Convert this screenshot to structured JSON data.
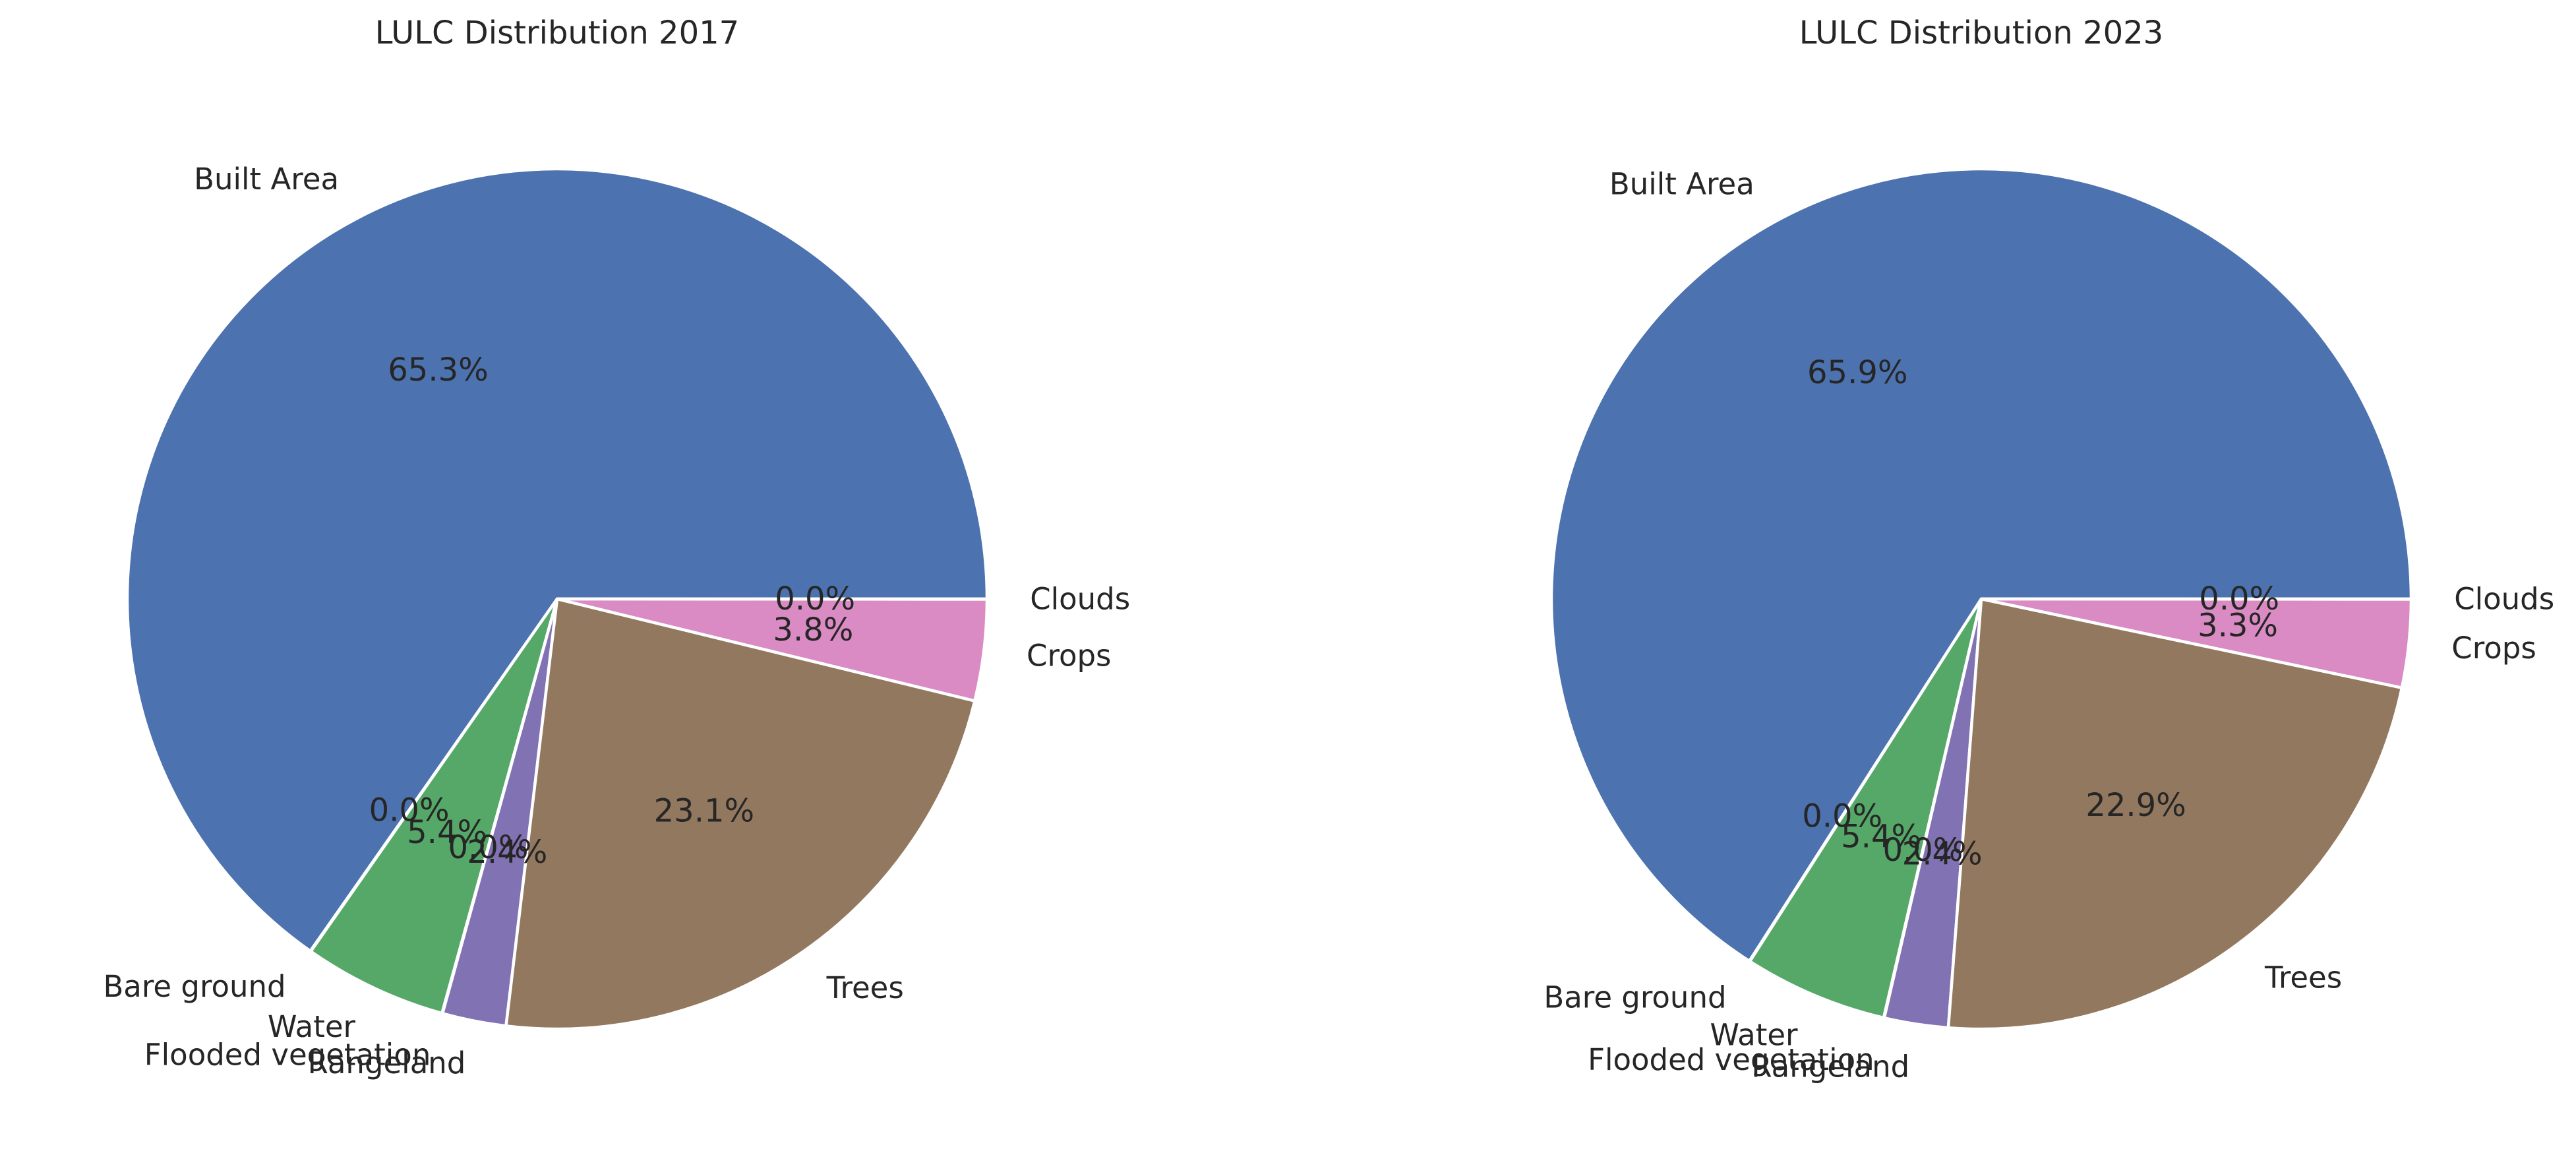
{
  "chart_data": [
    {
      "type": "pie",
      "title": "LULC Distribution 2017",
      "slices": [
        {
          "label": "Built Area",
          "value": 65.3,
          "pct_label": "65.3%",
          "color": "#4c72b0"
        },
        {
          "label": "Bare ground",
          "value": 0.02,
          "pct_label": "0.0%",
          "color": "#dd8452"
        },
        {
          "label": "Water",
          "value": 5.4,
          "pct_label": "5.4%",
          "color": "#55a868"
        },
        {
          "label": "Flooded vegetation",
          "value": 0.02,
          "pct_label": "0.0%",
          "color": "#c44e52"
        },
        {
          "label": "Rangeland",
          "value": 2.4,
          "pct_label": "2.4%",
          "color": "#8172b3"
        },
        {
          "label": "Trees",
          "value": 23.1,
          "pct_label": "23.1%",
          "color": "#937860"
        },
        {
          "label": "Crops",
          "value": 3.8,
          "pct_label": "3.8%",
          "color": "#da8bc3"
        },
        {
          "label": "Clouds",
          "value": 0.01,
          "pct_label": "0.0%",
          "color": "#8c8c8c"
        }
      ]
    },
    {
      "type": "pie",
      "title": "LULC Distribution 2023",
      "slices": [
        {
          "label": "Built Area",
          "value": 65.9,
          "pct_label": "65.9%",
          "color": "#4c72b0"
        },
        {
          "label": "Bare ground",
          "value": 0.02,
          "pct_label": "0.0%",
          "color": "#dd8452"
        },
        {
          "label": "Water",
          "value": 5.4,
          "pct_label": "5.4%",
          "color": "#55a868"
        },
        {
          "label": "Flooded vegetation",
          "value": 0.02,
          "pct_label": "0.0%",
          "color": "#c44e52"
        },
        {
          "label": "Rangeland",
          "value": 2.4,
          "pct_label": "2.4%",
          "color": "#8172b3"
        },
        {
          "label": "Trees",
          "value": 22.9,
          "pct_label": "22.9%",
          "color": "#937860"
        },
        {
          "label": "Crops",
          "value": 3.3,
          "pct_label": "3.3%",
          "color": "#da8bc3"
        },
        {
          "label": "Clouds",
          "value": 0.01,
          "pct_label": "0.0%",
          "color": "#8c8c8c"
        }
      ]
    }
  ]
}
